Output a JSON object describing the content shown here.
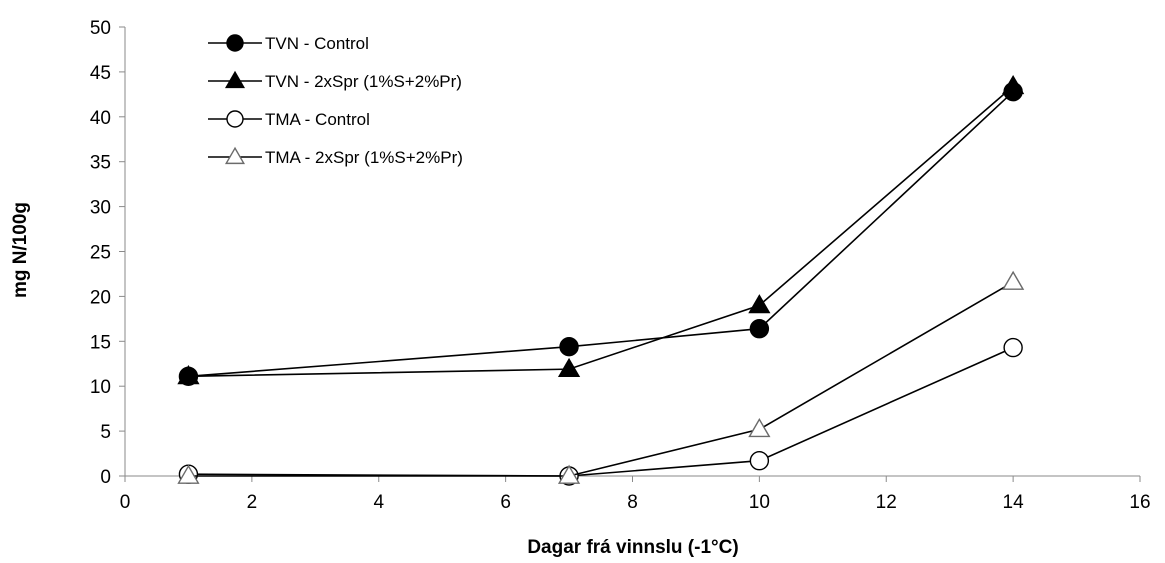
{
  "chart_data": {
    "type": "line",
    "xlabel": "Dagar frá vinnslu (-1°C)",
    "ylabel": "mg N/100g",
    "xlim": [
      0,
      16
    ],
    "ylim": [
      0,
      50
    ],
    "xticks": [
      0,
      2,
      4,
      6,
      8,
      10,
      12,
      14,
      16
    ],
    "yticks": [
      0,
      5,
      10,
      15,
      20,
      25,
      30,
      35,
      40,
      45,
      50
    ],
    "grid": false,
    "legend_position": "top-left",
    "series": [
      {
        "name": "TVN - Control",
        "marker": "circle",
        "fill": "#000000",
        "x": [
          1,
          7,
          10,
          14
        ],
        "y": [
          11.1,
          14.4,
          16.4,
          42.8
        ]
      },
      {
        "name": "TVN - 2xSpr (1%S+2%Pr)",
        "marker": "triangle",
        "fill": "#000000",
        "x": [
          1,
          7,
          10,
          14
        ],
        "y": [
          11.1,
          11.9,
          19.0,
          43.4
        ]
      },
      {
        "name": "TMA - Control",
        "marker": "circle",
        "fill": "#ffffff",
        "x": [
          1,
          7,
          10,
          14
        ],
        "y": [
          0.2,
          0.0,
          1.7,
          14.3
        ]
      },
      {
        "name": "TMA - 2xSpr (1%S+2%Pr)",
        "marker": "triangle",
        "fill": "#ffffff",
        "x": [
          1,
          7,
          10,
          14
        ],
        "y": [
          0.0,
          0.0,
          5.2,
          21.6
        ]
      }
    ]
  }
}
